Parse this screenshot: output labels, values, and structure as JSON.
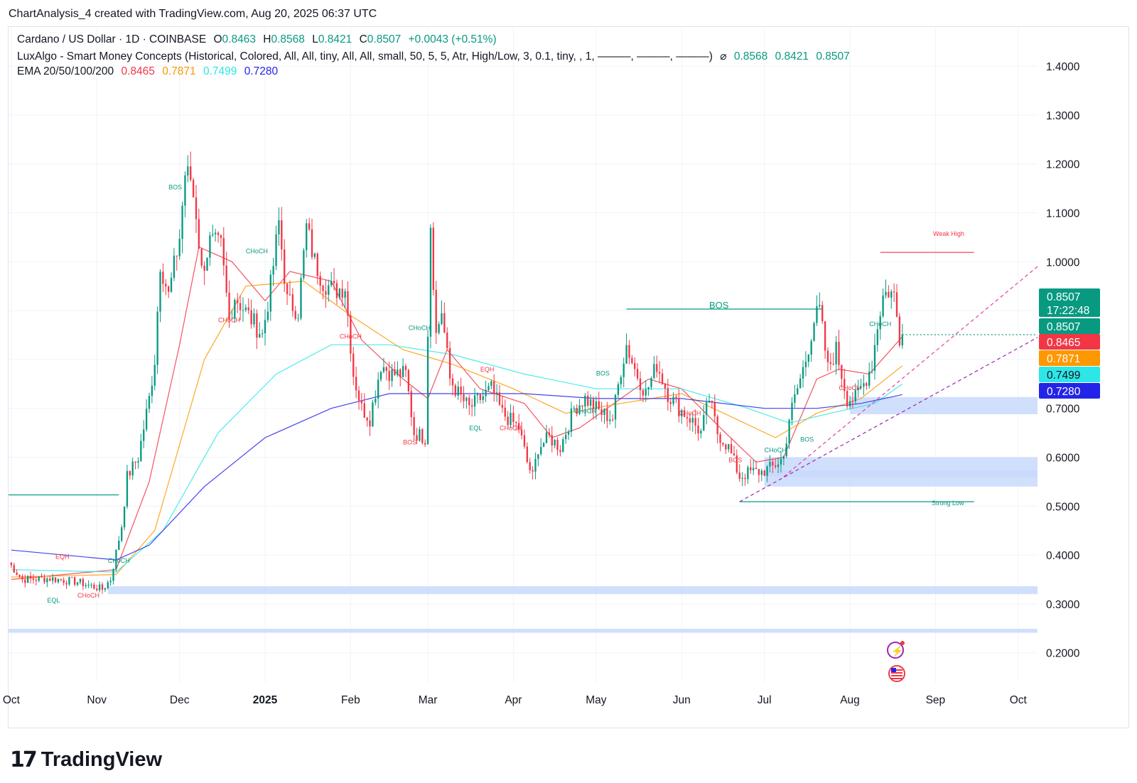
{
  "header": {
    "text": "ChartAnalysis_4 created with TradingView.com, Aug 20, 2025 06:37 UTC"
  },
  "legend": {
    "symbol": "Cardano / US Dollar · 1D · COINBASE",
    "ohlc": {
      "o_label": "O",
      "o": "0.8463",
      "h_label": "H",
      "h": "0.8568",
      "l_label": "L",
      "l": "0.8421",
      "c_label": "C",
      "c": "0.8507",
      "change": "+0.0043 (+0.51%)"
    },
    "indicator": "LuxAlgo - Smart Money Concepts (Historical, Colored, All, All, tiny, All, All, small, 50, 5, 5, Atr, High/Low, 3, 0.1, tiny, , 1, ———, ———, ———)",
    "indicator_symbol": "⌀",
    "indicator_values": [
      "0.8568",
      "0.8421",
      "0.8507"
    ],
    "ema_label": "EMA 20/50/100/200",
    "ema_values": [
      {
        "value": "0.8465",
        "color": "#f23645"
      },
      {
        "value": "0.7871",
        "color": "#ff9800"
      },
      {
        "value": "0.7499",
        "color": "#2ee6e6"
      },
      {
        "value": "0.7280",
        "color": "#2424e8"
      }
    ]
  },
  "price_labels": {
    "last": "0.8507",
    "countdown": "17:22:48",
    "last_dup": "0.8507",
    "ema20": "0.8465",
    "ema50": "0.7871",
    "ema100": "0.7499",
    "ema200": "0.7280"
  },
  "annotations": {
    "weak_high": "Weak High",
    "strong_low": "Strong Low",
    "bos_big": "BOS",
    "small": [
      {
        "t": "BOS",
        "c": "#089981",
        "x": "2024-11-27",
        "y": 1.148
      },
      {
        "t": "CHoCH",
        "c": "#089981",
        "x": "2024-12-25",
        "y": 1.017
      },
      {
        "t": "CHoCH",
        "c": "#f23645",
        "x": "2024-12-15",
        "y": 0.876
      },
      {
        "t": "CHoCH",
        "c": "#f23645",
        "x": "2025-01-28",
        "y": 0.843
      },
      {
        "t": "CHoCH",
        "c": "#089981",
        "x": "2025-02-22",
        "y": 0.86
      },
      {
        "t": "BOS",
        "c": "#f23645",
        "x": "2025-02-20",
        "y": 0.626
      },
      {
        "t": "EQH",
        "c": "#f23645",
        "x": "2025-03-20",
        "y": 0.775
      },
      {
        "t": "EQL",
        "c": "#089981",
        "x": "2025-03-16",
        "y": 0.655
      },
      {
        "t": "CHoCH",
        "c": "#f23645",
        "x": "2025-03-27",
        "y": 0.655
      },
      {
        "t": "CHoCH",
        "c": "#089981",
        "x": "2025-04-23",
        "y": 0.69
      },
      {
        "t": "BOS",
        "c": "#089981",
        "x": "2025-05-01",
        "y": 0.767
      },
      {
        "t": "CHoCH",
        "c": "#f23645",
        "x": "2025-05-31",
        "y": 0.686
      },
      {
        "t": "BOS",
        "c": "#f23645",
        "x": "2025-06-18",
        "y": 0.59
      },
      {
        "t": "CHoCH",
        "c": "#089981",
        "x": "2025-07-01",
        "y": 0.61
      },
      {
        "t": "BOS",
        "c": "#089981",
        "x": "2025-07-14",
        "y": 0.632
      },
      {
        "t": "CHoCH",
        "c": "#089981",
        "x": "2025-08-08",
        "y": 0.868
      },
      {
        "t": "CHoCH",
        "c": "#f23645",
        "x": "2025-07-28",
        "y": 0.737
      },
      {
        "t": "EQH",
        "c": "#f23645",
        "x": "2024-10-17",
        "y": 0.392
      },
      {
        "t": "CHoCH",
        "c": "#089981",
        "x": "2024-11-05",
        "y": 0.384
      },
      {
        "t": "EQL",
        "c": "#089981",
        "x": "2024-10-14",
        "y": 0.303
      },
      {
        "t": "CHoCH",
        "c": "#f23645",
        "x": "2024-10-25",
        "y": 0.313
      }
    ]
  },
  "colors": {
    "up": "#089981",
    "down": "#f23645",
    "ema20": "#f23645",
    "ema50": "#ff9800",
    "ema100": "#2ee6e6",
    "ema200": "#2424e8",
    "zone": "#c8d9fb",
    "grid": "#f0f3fa"
  },
  "chart_data": {
    "type": "candlestick",
    "title": "Cardano / US Dollar · 1D · COINBASE",
    "y_axis": {
      "ylim": [
        0.14,
        1.48
      ],
      "ticks": [
        "1.4000",
        "1.3000",
        "1.2000",
        "1.1000",
        "1.0000",
        "0.9000",
        "0.8000",
        "0.7000",
        "0.6000",
        "0.5000",
        "0.4000",
        "0.3000",
        "0.2000"
      ],
      "tick_values": [
        1.4,
        1.3,
        1.2,
        1.1,
        1.0,
        0.9,
        0.8,
        0.7,
        0.6,
        0.5,
        0.4,
        0.3,
        0.2
      ]
    },
    "x_axis": {
      "range": [
        "2024-09-30",
        "2025-10-08"
      ],
      "ticks": [
        {
          "label": "Oct",
          "date": "2024-10-01"
        },
        {
          "label": "Nov",
          "date": "2024-11-01"
        },
        {
          "label": "Dec",
          "date": "2024-12-01"
        },
        {
          "label": "2025",
          "date": "2025-01-01",
          "bold": true
        },
        {
          "label": "Feb",
          "date": "2025-02-01"
        },
        {
          "label": "Mar",
          "date": "2025-03-01"
        },
        {
          "label": "Apr",
          "date": "2025-04-01"
        },
        {
          "label": "May",
          "date": "2025-05-01"
        },
        {
          "label": "Jun",
          "date": "2025-06-01"
        },
        {
          "label": "Jul",
          "date": "2025-07-01"
        },
        {
          "label": "Aug",
          "date": "2025-08-01"
        },
        {
          "label": "Sep",
          "date": "2025-09-01"
        },
        {
          "label": "Oct",
          "date": "2025-10-01"
        }
      ]
    },
    "close_keypoints": [
      [
        "2024-09-30",
        0.385
      ],
      [
        "2024-10-05",
        0.35
      ],
      [
        "2024-10-15",
        0.352
      ],
      [
        "2024-10-25",
        0.345
      ],
      [
        "2024-11-03",
        0.33
      ],
      [
        "2024-11-06",
        0.35
      ],
      [
        "2024-11-10",
        0.46
      ],
      [
        "2024-11-12",
        0.56
      ],
      [
        "2024-11-16",
        0.6
      ],
      [
        "2024-11-20",
        0.72
      ],
      [
        "2024-11-22",
        0.8
      ],
      [
        "2024-11-24",
        1.0
      ],
      [
        "2024-11-27",
        0.93
      ],
      [
        "2024-12-01",
        1.05
      ],
      [
        "2024-12-03",
        1.18
      ],
      [
        "2024-12-05",
        1.17
      ],
      [
        "2024-12-07",
        1.1
      ],
      [
        "2024-12-09",
        0.98
      ],
      [
        "2024-12-12",
        1.04
      ],
      [
        "2024-12-16",
        1.03
      ],
      [
        "2024-12-19",
        0.88
      ],
      [
        "2024-12-21",
        0.93
      ],
      [
        "2024-12-26",
        0.89
      ],
      [
        "2024-12-31",
        0.85
      ],
      [
        "2025-01-03",
        0.95
      ],
      [
        "2025-01-06",
        1.08
      ],
      [
        "2025-01-09",
        0.92
      ],
      [
        "2025-01-13",
        0.9
      ],
      [
        "2025-01-16",
        1.07
      ],
      [
        "2025-01-19",
        1.0
      ],
      [
        "2025-01-22",
        0.96
      ],
      [
        "2025-01-26",
        0.94
      ],
      [
        "2025-01-30",
        0.95
      ],
      [
        "2025-02-02",
        0.77
      ],
      [
        "2025-02-05",
        0.7
      ],
      [
        "2025-02-08",
        0.68
      ],
      [
        "2025-02-12",
        0.79
      ],
      [
        "2025-02-16",
        0.77
      ],
      [
        "2025-02-21",
        0.77
      ],
      [
        "2025-02-24",
        0.65
      ],
      [
        "2025-02-28",
        0.64
      ],
      [
        "2025-03-02",
        1.08
      ],
      [
        "2025-03-04",
        0.85
      ],
      [
        "2025-03-06",
        0.9
      ],
      [
        "2025-03-09",
        0.76
      ],
      [
        "2025-03-12",
        0.73
      ],
      [
        "2025-03-16",
        0.7
      ],
      [
        "2025-03-20",
        0.72
      ],
      [
        "2025-03-24",
        0.74
      ],
      [
        "2025-03-28",
        0.69
      ],
      [
        "2025-04-03",
        0.66
      ],
      [
        "2025-04-06",
        0.59
      ],
      [
        "2025-04-08",
        0.56
      ],
      [
        "2025-04-10",
        0.62
      ],
      [
        "2025-04-14",
        0.64
      ],
      [
        "2025-04-18",
        0.62
      ],
      [
        "2025-04-23",
        0.7
      ],
      [
        "2025-04-27",
        0.72
      ],
      [
        "2025-05-03",
        0.69
      ],
      [
        "2025-05-07",
        0.68
      ],
      [
        "2025-05-10",
        0.78
      ],
      [
        "2025-05-12",
        0.83
      ],
      [
        "2025-05-15",
        0.78
      ],
      [
        "2025-05-19",
        0.73
      ],
      [
        "2025-05-23",
        0.79
      ],
      [
        "2025-05-27",
        0.73
      ],
      [
        "2025-05-31",
        0.7
      ],
      [
        "2025-06-04",
        0.68
      ],
      [
        "2025-06-08",
        0.65
      ],
      [
        "2025-06-11",
        0.72
      ],
      [
        "2025-06-14",
        0.65
      ],
      [
        "2025-06-18",
        0.62
      ],
      [
        "2025-06-22",
        0.56
      ],
      [
        "2025-06-26",
        0.57
      ],
      [
        "2025-06-30",
        0.57
      ],
      [
        "2025-07-04",
        0.58
      ],
      [
        "2025-07-08",
        0.6
      ],
      [
        "2025-07-10",
        0.68
      ],
      [
        "2025-07-13",
        0.74
      ],
      [
        "2025-07-16",
        0.8
      ],
      [
        "2025-07-19",
        0.88
      ],
      [
        "2025-07-21",
        0.9
      ],
      [
        "2025-07-24",
        0.78
      ],
      [
        "2025-07-27",
        0.82
      ],
      [
        "2025-07-31",
        0.72
      ],
      [
        "2025-08-03",
        0.72
      ],
      [
        "2025-08-06",
        0.75
      ],
      [
        "2025-08-09",
        0.79
      ],
      [
        "2025-08-11",
        0.87
      ],
      [
        "2025-08-13",
        0.93
      ],
      [
        "2025-08-15",
        0.94
      ],
      [
        "2025-08-17",
        0.93
      ],
      [
        "2025-08-19",
        0.846
      ],
      [
        "2025-08-20",
        0.8507
      ]
    ],
    "ema_series": [
      {
        "name": "EMA 20",
        "color": "#f23645",
        "points": [
          [
            "2024-10-01",
            0.35
          ],
          [
            "2024-11-08",
            0.37
          ],
          [
            "2024-11-20",
            0.55
          ],
          [
            "2024-12-01",
            0.83
          ],
          [
            "2024-12-08",
            1.03
          ],
          [
            "2024-12-20",
            1.0
          ],
          [
            "2025-01-01",
            0.92
          ],
          [
            "2025-01-10",
            0.98
          ],
          [
            "2025-01-25",
            0.96
          ],
          [
            "2025-02-05",
            0.84
          ],
          [
            "2025-02-20",
            0.76
          ],
          [
            "2025-03-01",
            0.72
          ],
          [
            "2025-03-08",
            0.82
          ],
          [
            "2025-03-20",
            0.74
          ],
          [
            "2025-04-05",
            0.71
          ],
          [
            "2025-04-15",
            0.64
          ],
          [
            "2025-04-25",
            0.66
          ],
          [
            "2025-05-10",
            0.72
          ],
          [
            "2025-05-20",
            0.76
          ],
          [
            "2025-06-01",
            0.74
          ],
          [
            "2025-06-15",
            0.66
          ],
          [
            "2025-06-28",
            0.59
          ],
          [
            "2025-07-08",
            0.6
          ],
          [
            "2025-07-20",
            0.76
          ],
          [
            "2025-07-28",
            0.78
          ],
          [
            "2025-08-08",
            0.77
          ],
          [
            "2025-08-20",
            0.8465
          ]
        ]
      },
      {
        "name": "EMA 50",
        "color": "#ff9800",
        "points": [
          [
            "2024-10-01",
            0.355
          ],
          [
            "2024-11-08",
            0.36
          ],
          [
            "2024-11-22",
            0.45
          ],
          [
            "2024-12-10",
            0.8
          ],
          [
            "2024-12-25",
            0.95
          ],
          [
            "2025-01-15",
            0.96
          ],
          [
            "2025-02-01",
            0.89
          ],
          [
            "2025-02-20",
            0.82
          ],
          [
            "2025-03-10",
            0.79
          ],
          [
            "2025-04-01",
            0.74
          ],
          [
            "2025-04-20",
            0.69
          ],
          [
            "2025-05-10",
            0.71
          ],
          [
            "2025-06-01",
            0.73
          ],
          [
            "2025-06-20",
            0.68
          ],
          [
            "2025-07-05",
            0.64
          ],
          [
            "2025-07-20",
            0.69
          ],
          [
            "2025-08-05",
            0.72
          ],
          [
            "2025-08-20",
            0.7871
          ]
        ]
      },
      {
        "name": "EMA 100",
        "color": "#2ee6e6",
        "points": [
          [
            "2024-10-01",
            0.37
          ],
          [
            "2024-11-08",
            0.365
          ],
          [
            "2024-11-25",
            0.45
          ],
          [
            "2024-12-15",
            0.65
          ],
          [
            "2025-01-05",
            0.77
          ],
          [
            "2025-01-25",
            0.83
          ],
          [
            "2025-02-15",
            0.83
          ],
          [
            "2025-03-10",
            0.81
          ],
          [
            "2025-04-05",
            0.77
          ],
          [
            "2025-05-01",
            0.74
          ],
          [
            "2025-06-01",
            0.74
          ],
          [
            "2025-06-25",
            0.7
          ],
          [
            "2025-07-10",
            0.67
          ],
          [
            "2025-07-25",
            0.69
          ],
          [
            "2025-08-10",
            0.71
          ],
          [
            "2025-08-20",
            0.7499
          ]
        ]
      },
      {
        "name": "EMA 200",
        "color": "#2424e8",
        "points": [
          [
            "2024-10-01",
            0.41
          ],
          [
            "2024-11-08",
            0.39
          ],
          [
            "2024-11-20",
            0.42
          ],
          [
            "2024-12-10",
            0.54
          ],
          [
            "2025-01-01",
            0.64
          ],
          [
            "2025-01-25",
            0.7
          ],
          [
            "2025-02-15",
            0.73
          ],
          [
            "2025-03-10",
            0.73
          ],
          [
            "2025-04-05",
            0.73
          ],
          [
            "2025-05-01",
            0.72
          ],
          [
            "2025-06-01",
            0.72
          ],
          [
            "2025-07-01",
            0.7
          ],
          [
            "2025-07-20",
            0.7
          ],
          [
            "2025-08-05",
            0.71
          ],
          [
            "2025-08-20",
            0.728
          ]
        ]
      }
    ],
    "zones": [
      {
        "from": "2025-08-01",
        "to": "2025-10-08",
        "low": 0.688,
        "high": 0.723
      },
      {
        "from": "2025-07-01",
        "to": "2025-10-08",
        "low": 0.54,
        "high": 0.6
      },
      {
        "from": "2025-07-01",
        "to": "2025-10-08",
        "low": 0.56,
        "high": 0.573
      },
      {
        "from": "2024-11-05",
        "to": "2025-10-08",
        "low": 0.32,
        "high": 0.336
      },
      {
        "from": "2024-09-30",
        "to": "2025-10-08",
        "low": 0.241,
        "high": 0.249
      }
    ],
    "levels": [
      {
        "name": "Weak High",
        "from": "2025-08-12",
        "to": "2025-09-15",
        "y": 1.019,
        "color": "#f23645"
      },
      {
        "name": "BOS",
        "from": "2025-05-12",
        "to": "2025-07-22",
        "y": 0.903,
        "color": "#089981"
      },
      {
        "name": "Strong Low",
        "from": "2025-06-22",
        "to": "2025-09-15",
        "y": 0.509,
        "color": "#089981"
      },
      {
        "name": "",
        "from": "2024-09-30",
        "to": "2024-11-09",
        "y": 0.523,
        "color": "#089981"
      },
      {
        "name": "",
        "from": "2025-08-20",
        "to": "2025-10-08",
        "y": 0.8507,
        "color": "#089981",
        "dotted": true
      }
    ],
    "trendlines": [
      {
        "from": [
          "2025-06-22",
          0.509
        ],
        "to": [
          "2025-10-08",
          0.845
        ],
        "color": "#9c27b0"
      },
      {
        "from": [
          "2025-07-08",
          0.56
        ],
        "to": [
          "2025-10-08",
          0.99
        ],
        "color": "#e040a0"
      }
    ]
  }
}
